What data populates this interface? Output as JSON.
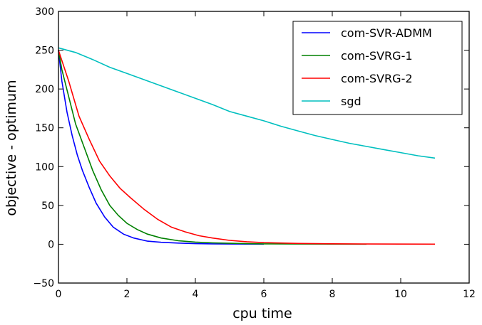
{
  "chart_data": {
    "type": "line",
    "title": "",
    "xlabel": "cpu time",
    "ylabel": "objective - optimum",
    "xlim": [
      0,
      12
    ],
    "ylim": [
      -50,
      300
    ],
    "xticks": [
      0,
      2,
      4,
      6,
      8,
      10,
      12
    ],
    "yticks": [
      -50,
      0,
      50,
      100,
      150,
      200,
      250,
      300
    ],
    "xtick_labels": [
      "0",
      "2",
      "4",
      "6",
      "8",
      "10",
      "12"
    ],
    "ytick_labels": [
      "−50",
      "0",
      "50",
      "100",
      "150",
      "200",
      "250",
      "300"
    ],
    "grid": false,
    "legend_position": "upper-right",
    "series": [
      {
        "name": "com-SVR-ADMM",
        "color": "#0000ff",
        "x": [
          0,
          0.1,
          0.25,
          0.4,
          0.55,
          0.7,
          0.9,
          1.1,
          1.35,
          1.6,
          1.9,
          2.2,
          2.6,
          3.0,
          3.5,
          4.0,
          4.5,
          5.0,
          5.5,
          6.0
        ],
        "y": [
          250,
          210,
          170,
          140,
          115,
          95,
          73,
          53,
          35,
          22,
          13,
          8,
          4,
          2.5,
          1.5,
          0.8,
          0.5,
          0.3,
          0.2,
          0.1
        ]
      },
      {
        "name": "com-SVRG-1",
        "color": "#008000",
        "x": [
          0,
          0.1,
          0.3,
          0.5,
          0.75,
          1.0,
          1.25,
          1.5,
          1.75,
          2.0,
          2.3,
          2.6,
          3.0,
          3.5,
          4.0,
          4.5,
          5.0,
          5.5,
          6.0,
          7.0,
          8.0,
          9.0
        ],
        "y": [
          250,
          225,
          190,
          155,
          125,
          95,
          70,
          50,
          37,
          27,
          19,
          13,
          8,
          4.5,
          2.8,
          1.8,
          1.2,
          0.8,
          0.5,
          0.3,
          0.2,
          0.1
        ]
      },
      {
        "name": "com-SVRG-2",
        "color": "#ff0000",
        "x": [
          0,
          0.3,
          0.6,
          0.9,
          1.2,
          1.5,
          1.8,
          2.1,
          2.5,
          2.9,
          3.3,
          3.7,
          4.1,
          4.5,
          5.0,
          5.5,
          6.0,
          7.0,
          8.0,
          9.0,
          10.0,
          11.0
        ],
        "y": [
          250,
          210,
          165,
          135,
          107,
          88,
          72,
          60,
          45,
          32,
          22,
          16,
          11,
          8,
          5,
          3.2,
          2,
          1,
          0.6,
          0.3,
          0.2,
          0.1
        ]
      },
      {
        "name": "sgd",
        "color": "#00bfbf",
        "x": [
          0,
          0.5,
          1.0,
          1.5,
          2.0,
          2.5,
          3.0,
          3.5,
          4.0,
          4.5,
          5.0,
          5.5,
          6.0,
          6.5,
          7.0,
          7.5,
          8.0,
          8.5,
          9.0,
          9.5,
          10.0,
          10.5,
          11.0
        ],
        "y": [
          253,
          247,
          238,
          228,
          220,
          212,
          204,
          196,
          188,
          180,
          171,
          165,
          159,
          152,
          146,
          140,
          135,
          130,
          126,
          122,
          118,
          114,
          111
        ]
      }
    ]
  }
}
